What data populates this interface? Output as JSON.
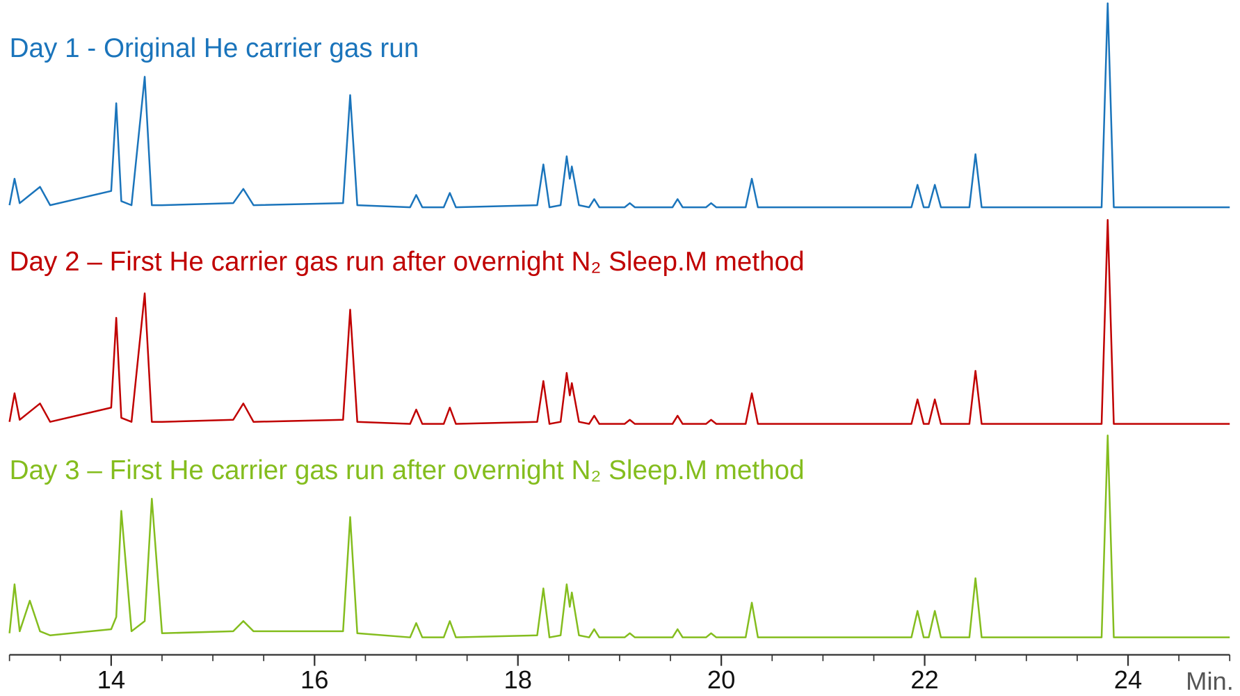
{
  "chart_data": {
    "type": "line",
    "x_label": "Min.",
    "x": [
      13.0,
      13.05,
      13.1,
      13.2,
      13.3,
      13.4,
      14.0,
      14.05,
      14.1,
      14.2,
      14.33,
      14.4,
      14.5,
      15.2,
      15.3,
      15.4,
      16.28,
      16.35,
      16.42,
      16.94,
      17.0,
      17.06,
      17.27,
      17.33,
      17.39,
      18.19,
      18.25,
      18.31,
      18.42,
      18.48,
      18.51,
      18.53,
      18.6,
      18.7,
      18.75,
      18.8,
      19.05,
      19.1,
      19.15,
      19.52,
      19.57,
      19.62,
      19.85,
      19.9,
      19.95,
      20.24,
      20.3,
      20.36,
      21.87,
      21.93,
      21.99,
      22.04,
      22.1,
      22.16,
      22.44,
      22.5,
      22.56,
      23.74,
      23.8,
      23.86,
      25.0
    ],
    "series": [
      {
        "name": "Day 1 - Original He carrier gas run",
        "color": "#1a74bb",
        "values": [
          1,
          14,
          2,
          6,
          10,
          1,
          8,
          51,
          3,
          1,
          64,
          1,
          1,
          2,
          9,
          1,
          2,
          55,
          1,
          0,
          6,
          0,
          0,
          7,
          0,
          1,
          21,
          0,
          1,
          25,
          14,
          20,
          1,
          0,
          4,
          0,
          0,
          2,
          0,
          0,
          4,
          0,
          0,
          2,
          0,
          0,
          14,
          0,
          0,
          11,
          0,
          0,
          11,
          0,
          0,
          26,
          0,
          0,
          100,
          0,
          0
        ]
      },
      {
        "name": "Day 2 – First He carrier gas run after overnight N₂ Sleep.M method",
        "color": "#c00000",
        "values": [
          1,
          15,
          2,
          6,
          10,
          1,
          8,
          52,
          3,
          1,
          64,
          1,
          1,
          2,
          10,
          1,
          2,
          56,
          1,
          0,
          7,
          0,
          0,
          8,
          0,
          1,
          21,
          0,
          1,
          25,
          14,
          20,
          1,
          0,
          4,
          0,
          0,
          2,
          0,
          0,
          4,
          0,
          0,
          2,
          0,
          0,
          15,
          0,
          0,
          12,
          0,
          0,
          12,
          0,
          0,
          26,
          0,
          0,
          100,
          0,
          0
        ]
      },
      {
        "name": "Day 3 – First He carrier gas run after overnight N₂ Sleep.M method",
        "color": "#84bd1e",
        "values": [
          2,
          26,
          3,
          18,
          3,
          1,
          4,
          10,
          62,
          3,
          8,
          68,
          2,
          3,
          8,
          3,
          3,
          59,
          2,
          0,
          7,
          0,
          0,
          8,
          0,
          1,
          24,
          0,
          1,
          26,
          15,
          22,
          1,
          0,
          4,
          0,
          0,
          2,
          0,
          0,
          4,
          0,
          0,
          2,
          0,
          0,
          17,
          0,
          0,
          13,
          0,
          0,
          13,
          0,
          0,
          29,
          0,
          0,
          99,
          0,
          0
        ]
      }
    ],
    "xlim": [
      13,
      25
    ],
    "xticks": [
      14,
      16,
      18,
      20,
      22,
      24
    ],
    "xminor_ticks": [
      13,
      13.5,
      14,
      14.5,
      15,
      15.5,
      16,
      16.5,
      17,
      17.5,
      18,
      18.5,
      19,
      19.5,
      20,
      20.5,
      21,
      21.5,
      22,
      22.5,
      23,
      23.5,
      24,
      24.5,
      25
    ],
    "ylim": [
      0,
      100
    ]
  }
}
